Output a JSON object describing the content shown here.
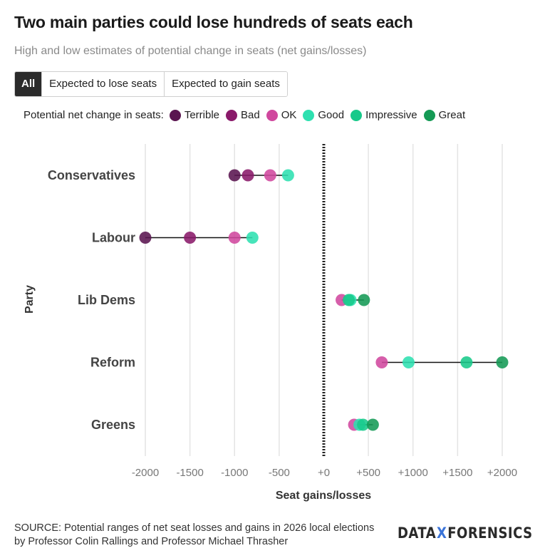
{
  "header": {
    "title": "Two main parties could lose hundreds of seats each",
    "subtitle": "High and low estimates of potential change in seats (net gains/losses)"
  },
  "filters": [
    {
      "label": "All",
      "active": true
    },
    {
      "label": "Expected to lose seats",
      "active": false
    },
    {
      "label": "Expected to gain seats",
      "active": false
    }
  ],
  "legend": {
    "title": "Potential net change in seats:",
    "items": [
      {
        "label": "Terrible",
        "color": "#5a1550"
      },
      {
        "label": "Bad",
        "color": "#8a1a6a"
      },
      {
        "label": "OK",
        "color": "#d0489e"
      },
      {
        "label": "Good",
        "color": "#2ee0b0"
      },
      {
        "label": "Impressive",
        "color": "#18c98a"
      },
      {
        "label": "Great",
        "color": "#159a55"
      }
    ]
  },
  "chart_data": {
    "type": "scatter",
    "title": "Two main parties could lose hundreds of seats each",
    "subtitle": "High and low estimates of potential change in seats (net gains/losses)",
    "xlabel": "Seat gains/losses",
    "ylabel": "Party",
    "xlim": [
      -2000,
      2000
    ],
    "x_ticks": [
      -2000,
      -1500,
      -1000,
      -500,
      0,
      500,
      1000,
      1500,
      2000
    ],
    "x_tick_labels": [
      "-2000",
      "-1500",
      "-1000",
      "-500",
      "+0",
      "+500",
      "+1000",
      "+1500",
      "+2000"
    ],
    "categories": [
      "Conservatives",
      "Labour",
      "Lib Dems",
      "Reform",
      "Greens"
    ],
    "series": [
      {
        "name": "Terrible",
        "values": [
          -1000,
          -2000,
          null,
          null,
          null
        ]
      },
      {
        "name": "Bad",
        "values": [
          -850,
          -1500,
          null,
          null,
          null
        ]
      },
      {
        "name": "OK",
        "values": [
          -600,
          -1000,
          200,
          650,
          340
        ]
      },
      {
        "name": "Good",
        "values": [
          -400,
          -800,
          300,
          950,
          400
        ]
      },
      {
        "name": "Impressive",
        "values": [
          null,
          null,
          280,
          1600,
          440
        ]
      },
      {
        "name": "Great",
        "values": [
          null,
          null,
          450,
          2000,
          550
        ]
      }
    ],
    "grid": true,
    "zero_line": "dotted",
    "legend_position": "top-left"
  },
  "footer": {
    "source": "SOURCE: Potential ranges of net seat losses and gains in 2026 local elections by Professor Colin Rallings and Professor Michael Thrasher",
    "logo_left": "DATA",
    "logo_x": "X",
    "logo_right": "FORENSICS"
  }
}
